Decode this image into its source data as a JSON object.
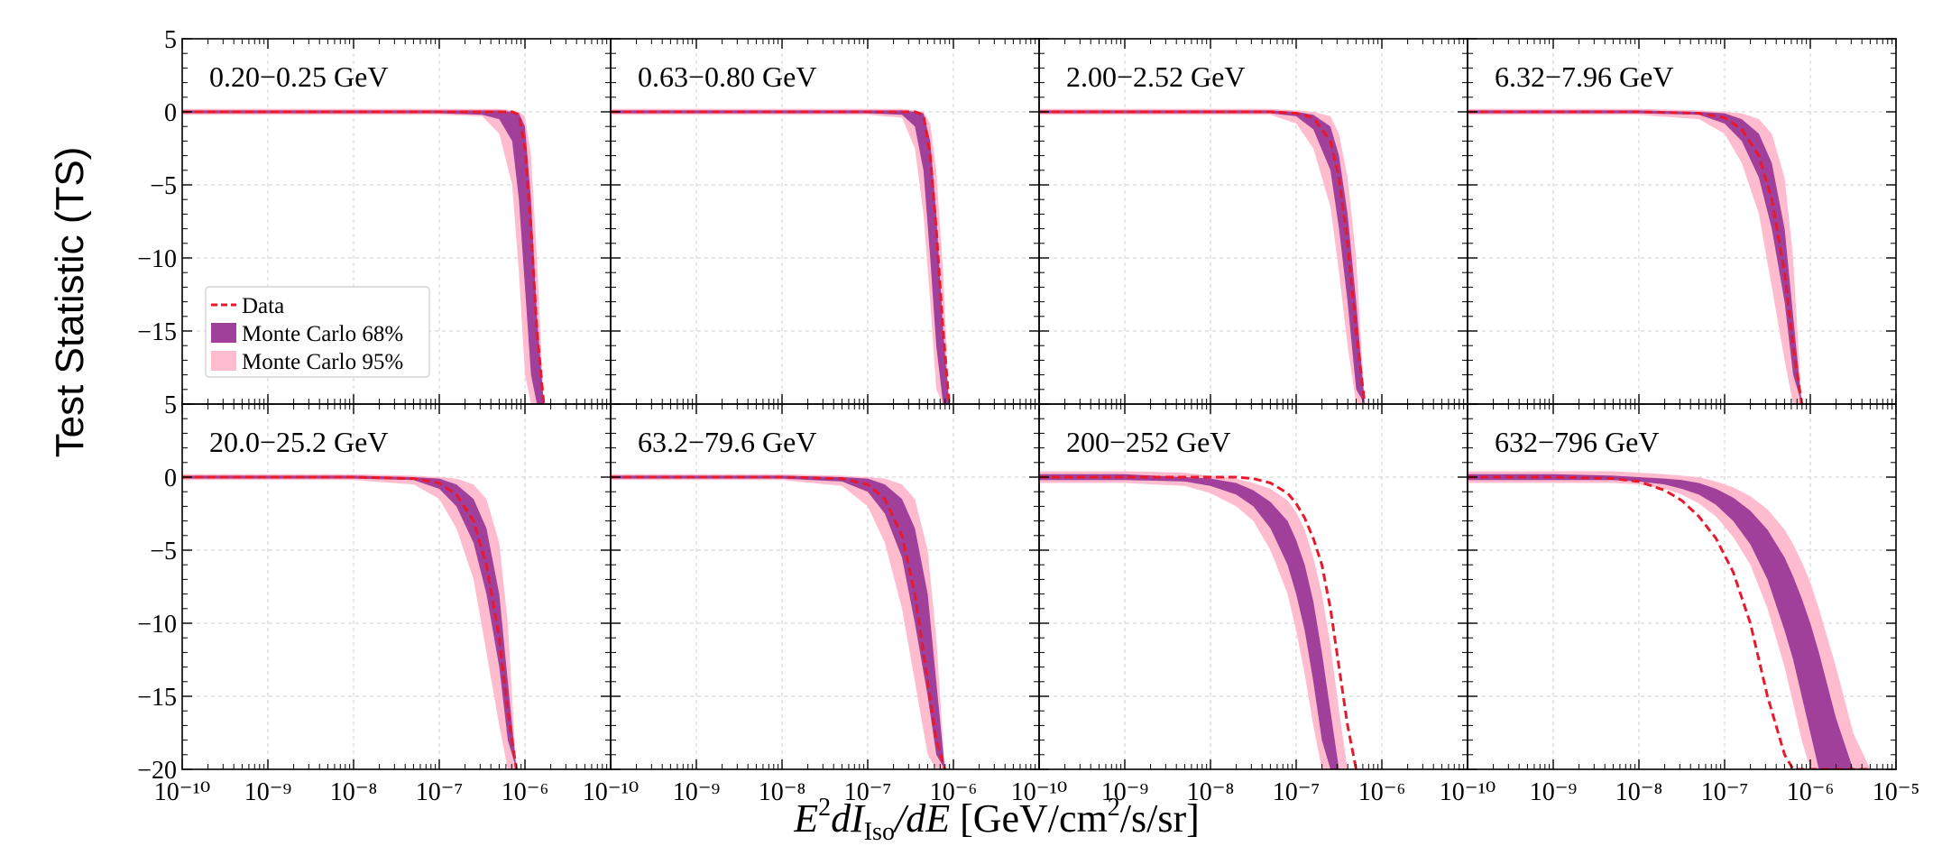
{
  "figure": {
    "ylabel": "Test Statistic (TS)",
    "xlabel_parts": {
      "e": "E",
      "sup2": "2",
      "dI": "dI",
      "iso": "Iso",
      "dE": "/dE",
      "units_a": " [GeV/cm",
      "sup_u": "2",
      "units_b": "/s/sr]"
    },
    "legend": [
      {
        "label": "Data",
        "kind": "dashed-line",
        "color": "#e8192c"
      },
      {
        "label": "Monte Carlo 68%",
        "kind": "band",
        "color": "#a0409a"
      },
      {
        "label": "Monte Carlo 95%",
        "kind": "band",
        "color": "#ffbcce"
      }
    ],
    "colors": {
      "data": "#e8192c",
      "mc68": "#a0409a",
      "mc95": "#ffbcce",
      "grid": "#cfcfcf"
    }
  },
  "chart_data": [
    {
      "type": "line",
      "title": "0.20−0.25 GeV",
      "xscale": "log",
      "xlim": [
        1e-10,
        1e-05
      ],
      "ylim": [
        -20,
        5
      ],
      "grid": true,
      "ytick_labels": [
        "5",
        "0",
        "−5",
        "−10",
        "−15",
        ""
      ],
      "xtick_labels": [],
      "x": [
        -10,
        -8,
        -7,
        -6.5,
        -6.3,
        -6.15,
        -6.07,
        -6.0,
        -5.93,
        -5.86,
        -5.78
      ],
      "series": [
        {
          "name": "Data",
          "y": [
            0,
            0,
            0,
            0,
            0,
            0,
            -0.2,
            -2.5,
            -8,
            -15,
            -20
          ]
        },
        {
          "name": "Monte Carlo 68%",
          "lower": [
            -0.1,
            -0.1,
            -0.1,
            -0.2,
            -0.5,
            -2,
            -6,
            -12,
            -18,
            -20,
            -20
          ],
          "upper": [
            0.1,
            0.1,
            0.1,
            0.1,
            0.1,
            0,
            -0.1,
            -1,
            -6,
            -14,
            -20
          ]
        },
        {
          "name": "Monte Carlo 95%",
          "lower": [
            -0.2,
            -0.2,
            -0.2,
            -0.3,
            -1.5,
            -5,
            -11,
            -18,
            -20,
            -20,
            -20
          ],
          "upper": [
            0.2,
            0.2,
            0.2,
            0.2,
            0.2,
            0.1,
            0,
            -0.3,
            -3,
            -10,
            -20
          ]
        }
      ]
    },
    {
      "type": "line",
      "title": "0.63−0.80 GeV",
      "xscale": "log",
      "xlim": [
        1e-10,
        1e-05
      ],
      "ylim": [
        -20,
        5
      ],
      "grid": true,
      "ytick_labels": [],
      "xtick_labels": [],
      "x": [
        -10,
        -8,
        -7,
        -6.6,
        -6.45,
        -6.35,
        -6.27,
        -6.2,
        -6.12,
        -6.05
      ],
      "series": [
        {
          "name": "Data",
          "y": [
            0,
            0,
            0,
            0,
            0,
            -0.2,
            -3,
            -8,
            -15,
            -20
          ]
        },
        {
          "name": "Monte Carlo 68%",
          "lower": [
            -0.1,
            -0.1,
            -0.1,
            -0.2,
            -1,
            -4,
            -10,
            -16,
            -20,
            -20
          ],
          "upper": [
            0.1,
            0.1,
            0.1,
            0.1,
            0,
            -0.1,
            -2,
            -7,
            -15,
            -20
          ]
        },
        {
          "name": "Monte Carlo 95%",
          "lower": [
            -0.2,
            -0.2,
            -0.2,
            -0.4,
            -2.5,
            -7,
            -13,
            -19,
            -20,
            -20
          ],
          "upper": [
            0.2,
            0.2,
            0.2,
            0.2,
            0.1,
            0,
            -0.8,
            -4,
            -11,
            -20
          ]
        }
      ]
    },
    {
      "type": "line",
      "title": "2.00−2.52 GeV",
      "xscale": "log",
      "xlim": [
        1e-10,
        1e-05
      ],
      "ylim": [
        -20,
        5
      ],
      "grid": true,
      "ytick_labels": [],
      "xtick_labels": [],
      "x": [
        -10,
        -8,
        -7.3,
        -7,
        -6.8,
        -6.6,
        -6.5,
        -6.4,
        -6.3,
        -6.2
      ],
      "series": [
        {
          "name": "Data",
          "y": [
            0,
            0,
            0,
            -0.1,
            -0.4,
            -2,
            -4.5,
            -9,
            -15,
            -20
          ]
        },
        {
          "name": "Monte Carlo 68%",
          "lower": [
            -0.1,
            -0.1,
            -0.1,
            -0.3,
            -1.2,
            -4,
            -8,
            -13,
            -19,
            -20
          ],
          "upper": [
            0.1,
            0.1,
            0.1,
            0,
            -0.2,
            -1,
            -3,
            -7,
            -13,
            -20
          ]
        },
        {
          "name": "Monte Carlo 95%",
          "lower": [
            -0.2,
            -0.2,
            -0.2,
            -0.8,
            -2.5,
            -6.5,
            -11,
            -16,
            -20,
            -20
          ],
          "upper": [
            0.2,
            0.2,
            0.2,
            0.1,
            0,
            -0.3,
            -1.5,
            -4.5,
            -10,
            -20
          ]
        }
      ]
    },
    {
      "type": "line",
      "title": "6.32−7.96 GeV",
      "xscale": "log",
      "xlim": [
        1e-10,
        1e-05
      ],
      "ylim": [
        -20,
        5
      ],
      "grid": true,
      "ytick_labels": [],
      "xtick_labels": [],
      "x": [
        -10,
        -8,
        -7.3,
        -7,
        -6.8,
        -6.6,
        -6.45,
        -6.3,
        -6.2,
        -6.1
      ],
      "series": [
        {
          "name": "Data",
          "y": [
            0,
            0,
            -0.1,
            -0.4,
            -1.2,
            -3,
            -6,
            -11,
            -16,
            -20
          ]
        },
        {
          "name": "Monte Carlo 68%",
          "lower": [
            -0.1,
            -0.1,
            -0.2,
            -0.8,
            -2,
            -4.5,
            -8,
            -13,
            -18,
            -20
          ],
          "upper": [
            0.1,
            0.1,
            0,
            -0.1,
            -0.5,
            -1.5,
            -3.5,
            -8,
            -14,
            -20
          ]
        },
        {
          "name": "Monte Carlo 95%",
          "lower": [
            -0.2,
            -0.2,
            -0.5,
            -1.5,
            -3.5,
            -7,
            -12,
            -17,
            -20,
            -20
          ],
          "upper": [
            0.2,
            0.2,
            0.1,
            0,
            -0.1,
            -0.5,
            -1.5,
            -4.5,
            -10,
            -20
          ]
        }
      ]
    },
    {
      "type": "line",
      "title": "20.0−25.2 GeV",
      "xscale": "log",
      "xlim": [
        1e-10,
        1e-05
      ],
      "ylim": [
        -20,
        5
      ],
      "grid": true,
      "ytick_labels": [
        "5",
        "0",
        "−5",
        "−10",
        "−15",
        "−20"
      ],
      "xtick_labels": [
        "10⁻¹⁰",
        "10⁻⁹",
        "10⁻⁸",
        "10⁻⁷",
        "10⁻⁶"
      ],
      "x": [
        -10,
        -8,
        -7.3,
        -7,
        -6.8,
        -6.6,
        -6.45,
        -6.3,
        -6.2,
        -6.1
      ],
      "series": [
        {
          "name": "Data",
          "y": [
            0,
            0,
            -0.1,
            -0.4,
            -1.2,
            -3,
            -6,
            -11,
            -16,
            -20
          ]
        },
        {
          "name": "Monte Carlo 68%",
          "lower": [
            -0.1,
            -0.1,
            -0.2,
            -0.8,
            -2,
            -4.5,
            -8,
            -13,
            -18,
            -20
          ],
          "upper": [
            0.1,
            0.1,
            0,
            -0.1,
            -0.5,
            -1.5,
            -3.5,
            -8,
            -14,
            -20
          ]
        },
        {
          "name": "Monte Carlo 95%",
          "lower": [
            -0.2,
            -0.2,
            -0.5,
            -1.5,
            -3.5,
            -7,
            -12,
            -17,
            -20,
            -20
          ],
          "upper": [
            0.2,
            0.2,
            0.1,
            0,
            -0.1,
            -0.5,
            -1.5,
            -4.5,
            -10,
            -20
          ]
        }
      ]
    },
    {
      "type": "line",
      "title": "63.2−79.6 GeV",
      "xscale": "log",
      "xlim": [
        1e-10,
        1e-05
      ],
      "ylim": [
        -20,
        5
      ],
      "grid": true,
      "ytick_labels": [],
      "xtick_labels": [
        "10⁻¹⁰",
        "10⁻⁹",
        "10⁻⁸",
        "10⁻⁷",
        "10⁻⁶"
      ],
      "x": [
        -10,
        -8,
        -7.3,
        -7,
        -6.8,
        -6.6,
        -6.45,
        -6.3,
        -6.2,
        -6.1
      ],
      "series": [
        {
          "name": "Data",
          "y": [
            0,
            0,
            -0.1,
            -0.5,
            -1.5,
            -4,
            -8,
            -14,
            -18,
            -20
          ]
        },
        {
          "name": "Monte Carlo 68%",
          "lower": [
            -0.1,
            -0.1,
            -0.3,
            -1,
            -2.5,
            -5.5,
            -10,
            -15,
            -19,
            -20
          ],
          "upper": [
            0.1,
            0.1,
            0,
            -0.1,
            -0.5,
            -1.5,
            -3.5,
            -8,
            -14,
            -20
          ]
        },
        {
          "name": "Monte Carlo 95%",
          "lower": [
            -0.2,
            -0.2,
            -0.6,
            -2,
            -4.5,
            -9,
            -14,
            -19,
            -20,
            -20
          ],
          "upper": [
            0.2,
            0.2,
            0.1,
            0,
            -0.1,
            -0.5,
            -1.5,
            -5,
            -11,
            -20
          ]
        }
      ]
    },
    {
      "type": "line",
      "title": "200−252 GeV",
      "xscale": "log",
      "xlim": [
        1e-10,
        1e-05
      ],
      "ylim": [
        -20,
        5
      ],
      "grid": true,
      "ytick_labels": [],
      "xtick_labels": [
        "10⁻¹⁰",
        "10⁻⁹",
        "10⁻⁸",
        "10⁻⁷",
        "10⁻⁶"
      ],
      "x": [
        -10,
        -9,
        -8.3,
        -8,
        -7.7,
        -7.5,
        -7.3,
        -7.1,
        -7,
        -6.9,
        -6.8,
        -6.7,
        -6.6,
        -6.5,
        -6.4,
        -6.3
      ],
      "series": [
        {
          "name": "Data",
          "y": [
            0,
            0,
            0,
            0,
            0,
            -0.1,
            -0.4,
            -1.1,
            -1.8,
            -2.8,
            -4.2,
            -6,
            -9,
            -13,
            -17,
            -20
          ]
        },
        {
          "name": "Monte Carlo 68%",
          "lower": [
            -0.2,
            -0.2,
            -0.3,
            -0.6,
            -1.2,
            -2,
            -3.5,
            -6,
            -8,
            -10.5,
            -14,
            -18,
            -20,
            -20,
            -20,
            -20
          ],
          "upper": [
            0.2,
            0.2,
            0,
            -0.1,
            -0.4,
            -0.9,
            -1.7,
            -3,
            -4.3,
            -6,
            -8.5,
            -12,
            -16,
            -20,
            -20,
            -20
          ]
        },
        {
          "name": "Monte Carlo 95%",
          "lower": [
            -0.4,
            -0.4,
            -0.6,
            -1.1,
            -2,
            -3,
            -5,
            -8,
            -10.5,
            -13.5,
            -17,
            -20,
            -20,
            -20,
            -20,
            -20
          ],
          "upper": [
            0.4,
            0.4,
            0.3,
            0.1,
            -0.1,
            -0.4,
            -0.8,
            -1.6,
            -2.4,
            -3.6,
            -5.5,
            -8,
            -11.5,
            -16,
            -20,
            -20
          ]
        }
      ]
    },
    {
      "type": "line",
      "title": "632−796 GeV",
      "xscale": "log",
      "xlim": [
        1e-10,
        1e-05
      ],
      "ylim": [
        -20,
        5
      ],
      "grid": true,
      "ytick_labels": [],
      "xtick_labels": [
        "10⁻¹⁰",
        "10⁻⁹",
        "10⁻⁸",
        "10⁻⁷",
        "10⁻⁶",
        "10⁻⁵"
      ],
      "x": [
        -10,
        -9,
        -8.3,
        -8,
        -7.7,
        -7.5,
        -7.3,
        -7.1,
        -6.9,
        -6.7,
        -6.5,
        -6.3,
        -6.2,
        -6.1,
        -6.0,
        -5.9,
        -5.7,
        -5.5,
        -5.3
      ],
      "series": [
        {
          "name": "Data",
          "y": [
            0,
            0,
            -0.1,
            -0.3,
            -0.9,
            -1.6,
            -2.7,
            -4.2,
            -6.5,
            -10,
            -15,
            -19,
            -20,
            -20,
            -20,
            -20,
            -20,
            -20,
            -20
          ]
        },
        {
          "name": "Monte Carlo 68%",
          "lower": [
            -0.2,
            -0.2,
            -0.2,
            -0.3,
            -0.5,
            -0.8,
            -1.2,
            -1.9,
            -3,
            -4.6,
            -7,
            -10.5,
            -12.5,
            -15,
            -17.5,
            -20,
            -20,
            -20,
            -20
          ],
          "upper": [
            0.2,
            0.2,
            0.1,
            0,
            -0.1,
            -0.2,
            -0.4,
            -0.8,
            -1.4,
            -2.3,
            -3.6,
            -5.5,
            -6.8,
            -8.3,
            -10,
            -12,
            -16.5,
            -20,
            -20
          ]
        },
        {
          "name": "Monte Carlo 95%",
          "lower": [
            -0.4,
            -0.4,
            -0.4,
            -0.5,
            -0.8,
            -1.2,
            -1.8,
            -2.7,
            -4.1,
            -6,
            -9,
            -13,
            -15.5,
            -18,
            -20,
            -20,
            -20,
            -20,
            -20
          ],
          "upper": [
            0.4,
            0.4,
            0.4,
            0.3,
            0.2,
            0.1,
            0,
            -0.3,
            -0.7,
            -1.3,
            -2.2,
            -3.6,
            -4.6,
            -5.8,
            -7.2,
            -9,
            -13,
            -17.5,
            -20
          ]
        }
      ]
    }
  ]
}
